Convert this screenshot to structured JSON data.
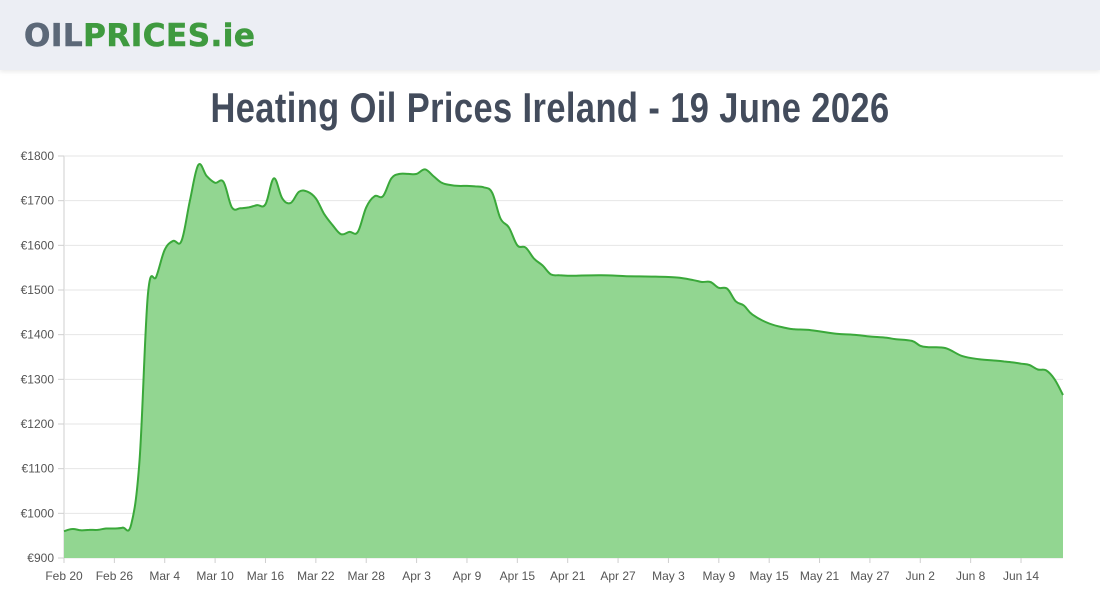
{
  "site": {
    "logo_part1": "OIL",
    "logo_part2": "PRICES.ie"
  },
  "colors": {
    "header_bg": "#eceef4",
    "logo_grey": "#5c6878",
    "logo_green": "#3f9a3f",
    "area_fill": "#92d691",
    "line": "#3aa83a",
    "grid": "#e6e6e6"
  },
  "chart_data": {
    "type": "area",
    "title": "Heating Oil Prices Ireland - 19 June 2026",
    "xlabel": "",
    "ylabel": "",
    "ylim": [
      900,
      1800
    ],
    "grid": true,
    "legend": "none",
    "y_ticks": [
      "€900",
      "€1000",
      "€1100",
      "€1200",
      "€1300",
      "€1400",
      "€1500",
      "€1600",
      "€1700",
      "€1800"
    ],
    "y_tick_values": [
      900,
      1000,
      1100,
      1200,
      1300,
      1400,
      1500,
      1600,
      1700,
      1800
    ],
    "x_ticks": [
      "Feb 20",
      "Feb 26",
      "Mar 4",
      "Mar 10",
      "Mar 16",
      "Mar 22",
      "Mar 28",
      "Apr 3",
      "Apr 9",
      "Apr 15",
      "Apr 21",
      "Apr 27",
      "May 3",
      "May 9",
      "May 15",
      "May 21",
      "May 27",
      "Jun 2",
      "Jun 8",
      "Jun 14"
    ],
    "x_tick_values": [
      "2026-02-20",
      "2026-02-26",
      "2026-03-04",
      "2026-03-10",
      "2026-03-16",
      "2026-03-22",
      "2026-03-28",
      "2026-04-03",
      "2026-04-09",
      "2026-04-15",
      "2026-04-21",
      "2026-04-27",
      "2026-05-03",
      "2026-05-09",
      "2026-05-15",
      "2026-05-21",
      "2026-05-27",
      "2026-06-02",
      "2026-06-08",
      "2026-06-14"
    ],
    "xlim": [
      "2026-02-20",
      "2026-06-19"
    ],
    "series": [
      {
        "x": [
          "2026-02-20",
          "2026-02-21",
          "2026-02-22",
          "2026-02-23",
          "2026-02-24",
          "2026-02-25",
          "2026-02-26",
          "2026-02-27",
          "2026-02-28",
          "2026-03-01",
          "2026-03-02",
          "2026-03-03",
          "2026-03-04",
          "2026-03-05",
          "2026-03-06",
          "2026-03-07",
          "2026-03-08",
          "2026-03-09",
          "2026-03-10",
          "2026-03-11",
          "2026-03-12",
          "2026-03-13",
          "2026-03-14",
          "2026-03-15",
          "2026-03-16",
          "2026-03-17",
          "2026-03-18",
          "2026-03-19",
          "2026-03-20",
          "2026-03-21",
          "2026-03-22",
          "2026-03-23",
          "2026-03-24",
          "2026-03-25",
          "2026-03-26",
          "2026-03-27",
          "2026-03-28",
          "2026-03-29",
          "2026-03-30",
          "2026-03-31",
          "2026-04-01",
          "2026-04-02",
          "2026-04-03",
          "2026-04-04",
          "2026-04-05",
          "2026-04-06",
          "2026-04-07",
          "2026-04-08",
          "2026-04-09",
          "2026-04-10",
          "2026-04-11",
          "2026-04-12",
          "2026-04-13",
          "2026-04-14",
          "2026-04-15",
          "2026-04-16",
          "2026-04-17",
          "2026-04-18",
          "2026-04-19",
          "2026-04-20",
          "2026-04-21",
          "2026-04-22",
          "2026-04-25",
          "2026-04-28",
          "2026-05-01",
          "2026-05-04",
          "2026-05-06",
          "2026-05-07",
          "2026-05-08",
          "2026-05-09",
          "2026-05-10",
          "2026-05-11",
          "2026-05-12",
          "2026-05-13",
          "2026-05-15",
          "2026-05-17",
          "2026-05-18",
          "2026-05-20",
          "2026-05-23",
          "2026-05-25",
          "2026-05-27",
          "2026-05-29",
          "2026-05-30",
          "2026-06-01",
          "2026-06-02",
          "2026-06-03",
          "2026-06-05",
          "2026-06-07",
          "2026-06-09",
          "2026-06-11",
          "2026-06-12",
          "2026-06-13",
          "2026-06-14",
          "2026-06-15",
          "2026-06-16",
          "2026-06-17",
          "2026-06-18",
          "2026-06-19"
        ],
        "y": [
          960,
          965,
          962,
          963,
          963,
          966,
          966,
          968,
          975,
          1120,
          1490,
          1530,
          1590,
          1610,
          1610,
          1700,
          1780,
          1755,
          1740,
          1742,
          1685,
          1683,
          1685,
          1690,
          1692,
          1750,
          1705,
          1695,
          1720,
          1720,
          1705,
          1670,
          1645,
          1625,
          1630,
          1630,
          1685,
          1710,
          1710,
          1750,
          1760,
          1760,
          1760,
          1770,
          1755,
          1740,
          1735,
          1733,
          1733,
          1732,
          1730,
          1718,
          1660,
          1640,
          1600,
          1595,
          1570,
          1555,
          1535,
          1533,
          1532,
          1532,
          1533,
          1531,
          1530,
          1528,
          1522,
          1518,
          1518,
          1505,
          1503,
          1475,
          1465,
          1445,
          1425,
          1415,
          1412,
          1410,
          1402,
          1400,
          1396,
          1393,
          1390,
          1386,
          1375,
          1372,
          1370,
          1352,
          1345,
          1342,
          1340,
          1338,
          1335,
          1332,
          1322,
          1320,
          1300,
          1265
        ]
      }
    ]
  }
}
